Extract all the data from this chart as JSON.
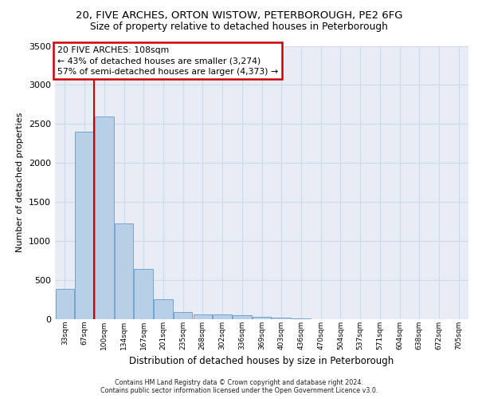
{
  "title_line1": "20, FIVE ARCHES, ORTON WISTOW, PETERBOROUGH, PE2 6FG",
  "title_line2": "Size of property relative to detached houses in Peterborough",
  "xlabel": "Distribution of detached houses by size in Peterborough",
  "ylabel": "Number of detached properties",
  "bar_values": [
    390,
    2400,
    2600,
    1230,
    640,
    260,
    90,
    60,
    60,
    50,
    30,
    20,
    10,
    5,
    3,
    2,
    1,
    1,
    0,
    0,
    0
  ],
  "bar_labels": [
    "33sqm",
    "67sqm",
    "100sqm",
    "134sqm",
    "167sqm",
    "201sqm",
    "235sqm",
    "268sqm",
    "302sqm",
    "336sqm",
    "369sqm",
    "403sqm",
    "436sqm",
    "470sqm",
    "504sqm",
    "537sqm",
    "571sqm",
    "604sqm",
    "638sqm",
    "672sqm",
    "705sqm"
  ],
  "bar_color": "#b8cfe8",
  "bar_edgecolor": "#6699cc",
  "red_line_bar_index": 2,
  "annotation_line1": "20 FIVE ARCHES: 108sqm",
  "annotation_line2": "← 43% of detached houses are smaller (3,274)",
  "annotation_line3": "57% of semi-detached houses are larger (4,373) →",
  "annotation_box_facecolor": "#ffffff",
  "annotation_box_edgecolor": "#cc0000",
  "ylim_max": 3500,
  "yticks": [
    0,
    500,
    1000,
    1500,
    2000,
    2500,
    3000,
    3500
  ],
  "grid_color": "#d0d8ea",
  "plot_bg_color": "#e8ecf5",
  "red_line_color": "#cc0000",
  "footer1": "Contains HM Land Registry data © Crown copyright and database right 2024.",
  "footer2": "Contains public sector information licensed under the Open Government Licence v3.0."
}
